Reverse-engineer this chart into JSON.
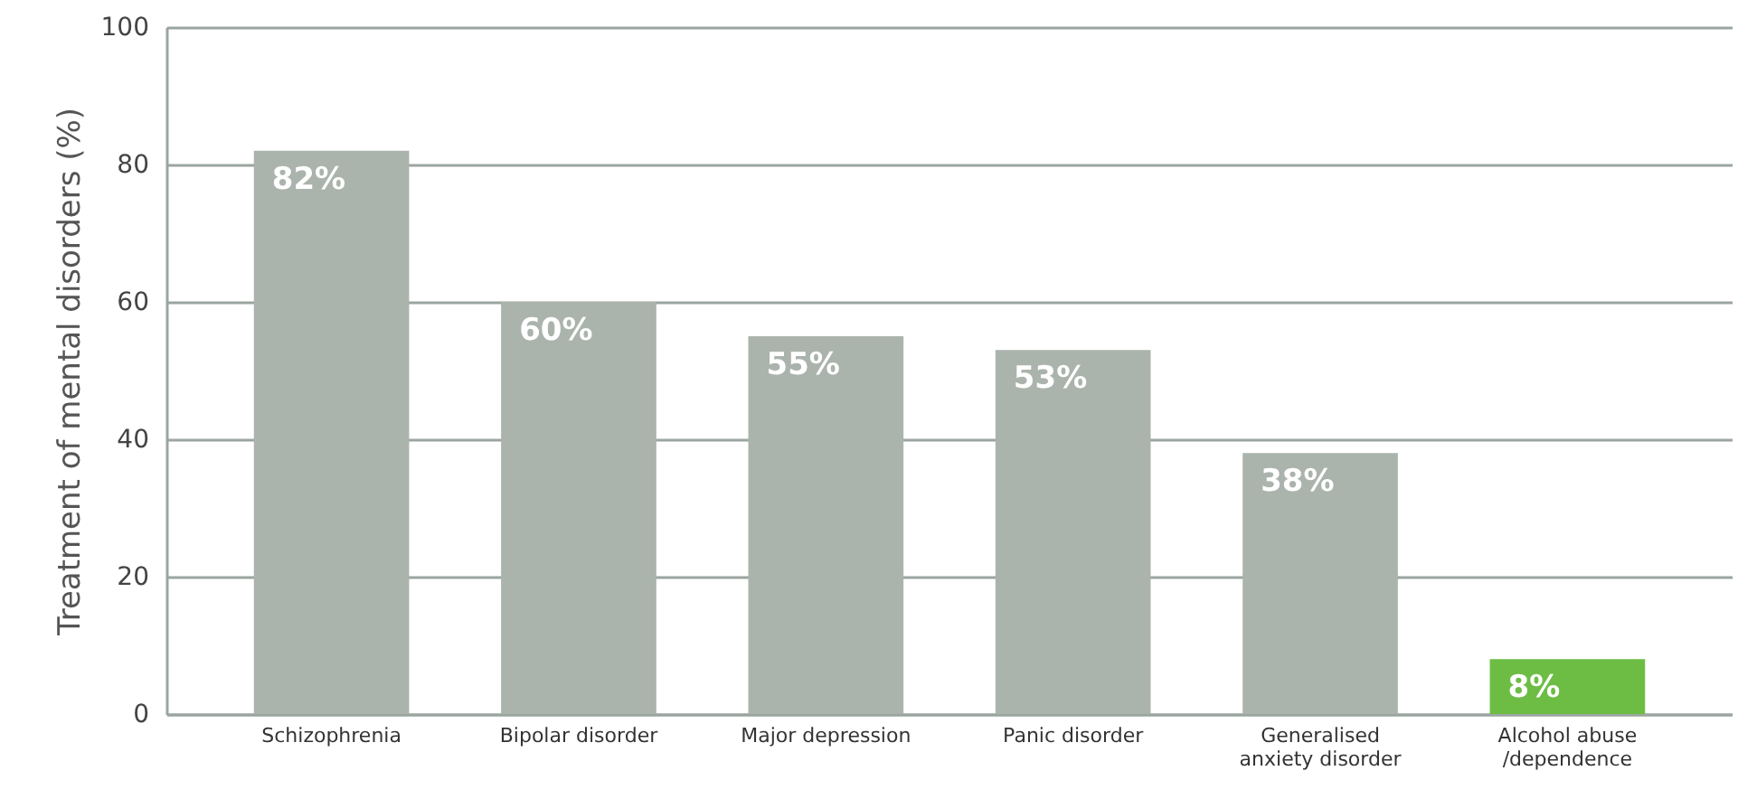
{
  "chart_data": {
    "type": "bar",
    "ylabel": "Treatment of mental disorders (%)",
    "categories": [
      "Schizophrenia",
      "Bipolar disorder",
      "Major depression",
      "Panic disorder",
      "Generalised anxiety disorder",
      "Alcohol abuse /dependence"
    ],
    "values": [
      82,
      60,
      55,
      53,
      38,
      8
    ],
    "value_labels": [
      "82%",
      "60%",
      "55%",
      "53%",
      "38%",
      "8%"
    ],
    "colors": [
      "#abb3ad",
      "#abb3ad",
      "#abb3ad",
      "#abb3ad",
      "#abb3ad",
      "#6dbd45"
    ],
    "ylim": [
      0,
      100
    ],
    "yticks": [
      0,
      20,
      40,
      60,
      80,
      100
    ],
    "grid": "y"
  }
}
